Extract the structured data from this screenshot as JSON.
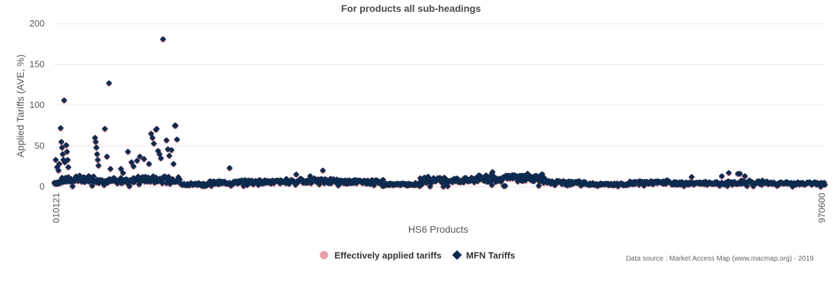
{
  "colors": {
    "mfn": "#0d2a4f",
    "applied": "#e8a1a8",
    "grid": "#e6e6e6"
  },
  "source_text": "Data source : Market Access Map (www.macmap.org) - 2019",
  "chart_data": {
    "type": "scatter",
    "title": "For products all sub-headings",
    "xlabel": "HS6 Products",
    "ylabel": "Applied Tariffs (AVE, %)",
    "ylim": [
      0,
      200
    ],
    "yticks": [
      0,
      50,
      100,
      150,
      200
    ],
    "x_tick_labels": [
      "010121",
      "970600"
    ],
    "x_count": 1100,
    "legend": {
      "position": "bottom-center",
      "items": [
        {
          "name": "Effectively applied tariffs",
          "marker": "circle",
          "color": "#e8a1a8"
        },
        {
          "name": "MFN Tariffs",
          "marker": "diamond",
          "color": "#0d2a4f"
        }
      ]
    },
    "series": [
      {
        "name": "MFN Tariffs",
        "marker": "diamond",
        "color": "#0d2a4f",
        "outliers": [
          [
            2,
            33
          ],
          [
            4,
            24
          ],
          [
            6,
            20
          ],
          [
            7,
            28
          ],
          [
            9,
            72
          ],
          [
            10,
            55
          ],
          [
            11,
            48
          ],
          [
            12,
            40
          ],
          [
            13,
            33
          ],
          [
            14,
            106
          ],
          [
            15,
            30
          ],
          [
            17,
            51
          ],
          [
            18,
            43
          ],
          [
            19,
            33
          ],
          [
            20,
            24
          ],
          [
            58,
            60
          ],
          [
            59,
            55
          ],
          [
            60,
            48
          ],
          [
            61,
            40
          ],
          [
            62,
            33
          ],
          [
            63,
            26
          ],
          [
            72,
            71
          ],
          [
            75,
            37
          ],
          [
            78,
            127
          ],
          [
            80,
            22
          ],
          [
            95,
            22
          ],
          [
            98,
            17
          ],
          [
            105,
            43
          ],
          [
            110,
            30
          ],
          [
            113,
            25
          ],
          [
            118,
            32
          ],
          [
            122,
            37
          ],
          [
            128,
            34
          ],
          [
            135,
            28
          ],
          [
            138,
            65
          ],
          [
            140,
            60
          ],
          [
            142,
            53
          ],
          [
            145,
            70
          ],
          [
            146,
            71
          ],
          [
            148,
            44
          ],
          [
            150,
            40
          ],
          [
            152,
            35
          ],
          [
            155,
            181
          ],
          [
            160,
            57
          ],
          [
            162,
            46
          ],
          [
            164,
            38
          ],
          [
            167,
            45
          ],
          [
            170,
            28
          ],
          [
            172,
            75
          ],
          [
            173,
            75
          ],
          [
            175,
            58
          ],
          [
            250,
            23
          ],
          [
            345,
            15
          ],
          [
            365,
            13
          ],
          [
            383,
            20
          ],
          [
            624,
            16
          ],
          [
            625,
            18
          ],
          [
            909,
            12
          ],
          [
            952,
            13
          ],
          [
            962,
            17
          ],
          [
            975,
            16
          ],
          [
            978,
            16
          ],
          [
            985,
            13
          ]
        ],
        "segments": [
          [
            0,
            8,
            5
          ],
          [
            8,
            30,
            8
          ],
          [
            30,
            60,
            10
          ],
          [
            60,
            110,
            7
          ],
          [
            110,
            180,
            9
          ],
          [
            180,
            220,
            3
          ],
          [
            220,
            260,
            5
          ],
          [
            260,
            330,
            6
          ],
          [
            330,
            400,
            7
          ],
          [
            400,
            470,
            6
          ],
          [
            470,
            520,
            3
          ],
          [
            520,
            600,
            8
          ],
          [
            600,
            650,
            10
          ],
          [
            650,
            700,
            11
          ],
          [
            700,
            760,
            5
          ],
          [
            760,
            820,
            3
          ],
          [
            820,
            880,
            5
          ],
          [
            880,
            960,
            4
          ],
          [
            960,
            1020,
            5
          ],
          [
            1020,
            1100,
            4
          ]
        ]
      },
      {
        "name": "Effectively applied tariffs",
        "marker": "circle",
        "color": "#e8a1a8",
        "note": "drawn beneath MFN markers"
      }
    ]
  }
}
